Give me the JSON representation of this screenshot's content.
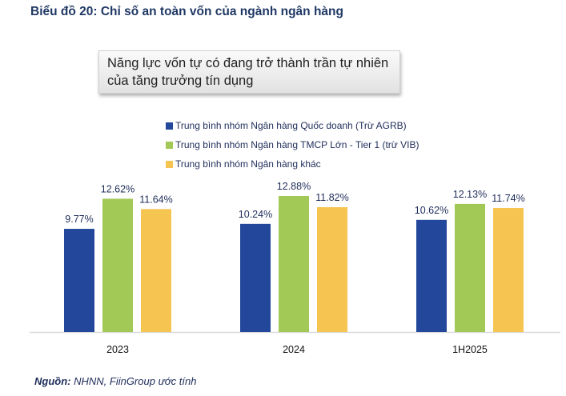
{
  "title": "Biểu đồ 20: Chỉ số an toàn vốn của ngành ngân hàng",
  "callout": {
    "line1": "Năng lực vốn tự có đang trở thành trần tự nhiên",
    "line2": "của tăng trưởng tín dụng"
  },
  "source": {
    "label": "Nguồn:",
    "text": " NHNN, FiinGroup ước tính"
  },
  "chart_data": {
    "type": "bar",
    "categories": [
      "2023",
      "2024",
      "1H2025"
    ],
    "series": [
      {
        "name": "Trung bình nhóm Ngân hàng Quốc doanh (Trừ AGRB)",
        "values": [
          9.77,
          10.24,
          10.62
        ],
        "labels": [
          "9.77%",
          "10.24%",
          "10.62%"
        ],
        "color": "#23489b"
      },
      {
        "name": "Trung bình nhóm Ngân hàng TMCP Lớn - Tier 1 (trừ VIB)",
        "values": [
          12.62,
          12.88,
          12.13
        ],
        "labels": [
          "12.62%",
          "12.88%",
          "12.13%"
        ],
        "color": "#a2c855"
      },
      {
        "name": "Trung bình nhóm Ngân hàng khác",
        "values": [
          11.64,
          11.82,
          11.74
        ],
        "labels": [
          "11.64%",
          "11.82%",
          "11.74%"
        ],
        "color": "#f5c451"
      }
    ],
    "ylim": [
      0,
      14
    ],
    "unit": "%",
    "grid": false,
    "legend_placement": "top-right"
  }
}
